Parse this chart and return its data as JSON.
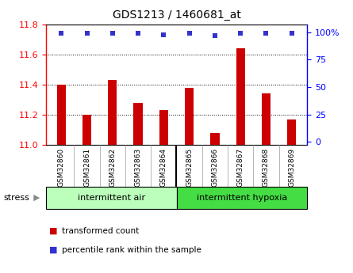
{
  "title": "GDS1213 / 1460681_at",
  "samples": [
    "GSM32860",
    "GSM32861",
    "GSM32862",
    "GSM32863",
    "GSM32864",
    "GSM32865",
    "GSM32866",
    "GSM32867",
    "GSM32868",
    "GSM32869"
  ],
  "transformed_counts": [
    11.4,
    11.2,
    11.43,
    11.28,
    11.23,
    11.38,
    11.08,
    11.64,
    11.34,
    11.17
  ],
  "percentile_ranks": [
    99,
    99,
    99,
    99,
    98,
    99,
    97,
    99,
    99,
    99
  ],
  "ylim": [
    11.0,
    11.8
  ],
  "yticks": [
    11.0,
    11.2,
    11.4,
    11.6,
    11.8
  ],
  "y2ticks": [
    0,
    25,
    50,
    75,
    100
  ],
  "bar_color": "#cc0000",
  "percentile_color": "#3333cc",
  "group1_label": "intermittent air",
  "group2_label": "intermittent hypoxia",
  "group1_color": "#bbffbb",
  "group2_color": "#44dd44",
  "stress_label": "stress",
  "legend_bar_label": "transformed count",
  "legend_pct_label": "percentile rank within the sample",
  "bar_bottom": 11.0,
  "n_group1": 5,
  "n_group2": 5,
  "figsize": [
    4.45,
    3.45
  ],
  "dpi": 100
}
